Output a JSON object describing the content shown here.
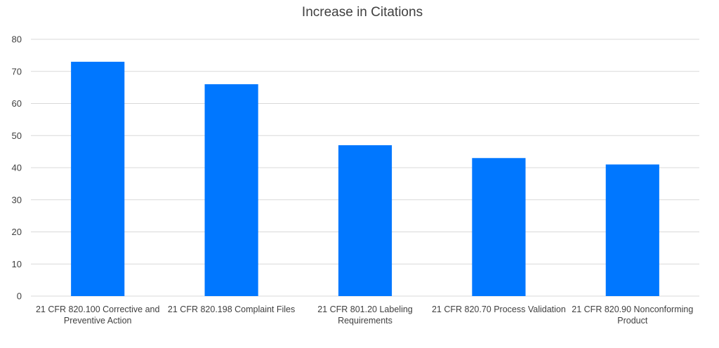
{
  "chart_data": {
    "type": "bar",
    "title": "Increase in Citations",
    "xlabel": "",
    "ylabel": "",
    "ylim": [
      0,
      80
    ],
    "yticks": [
      0,
      10,
      20,
      30,
      40,
      50,
      60,
      70,
      80
    ],
    "grid": true,
    "legend": "none",
    "bar_color": "#0077FF",
    "categories": [
      [
        "21 CFR 820.100 Corrective and",
        "Preventive Action"
      ],
      [
        "21 CFR 820.198 Complaint Files"
      ],
      [
        "21 CFR 801.20 Labeling",
        "Requirements"
      ],
      [
        "21 CFR 820.70 Process Validation"
      ],
      [
        "21 CFR 820.90 Nonconforming",
        "Product"
      ]
    ],
    "values": [
      73,
      66,
      47,
      43,
      41
    ]
  }
}
